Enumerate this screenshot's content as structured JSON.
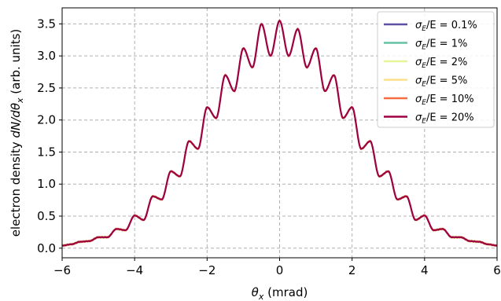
{
  "chart_data": {
    "type": "line",
    "xlabel_main": "θ",
    "xlabel_sub": "x",
    "xlabel_unit": " (mrad)",
    "ylabel_prefix": "electron density ",
    "ylabel_math": "dN/dθ",
    "ylabel_sub": "x",
    "ylabel_unit": " (arb. units)",
    "xlim": [
      -6,
      6
    ],
    "ylim": [
      -0.15,
      3.75
    ],
    "xticks": [
      "−6",
      "−4",
      "−2",
      "0",
      "2",
      "4",
      "6"
    ],
    "yticks": [
      "0.0",
      "0.5",
      "1.0",
      "1.5",
      "2.0",
      "2.5",
      "3.0",
      "3.5"
    ],
    "grid": true,
    "legend_position": "top-right",
    "series": [
      {
        "name": "σE/E = 0.1%",
        "label_main": "σ",
        "label_sub": "E",
        "label_rest": "/E = 0.1%",
        "color": "#5e4fa2"
      },
      {
        "name": "σE/E = 1%",
        "label_main": "σ",
        "label_sub": "E",
        "label_rest": "/E = 1%",
        "color": "#66c2a5"
      },
      {
        "name": "σE/E = 2%",
        "label_main": "σ",
        "label_sub": "E",
        "label_rest": "/E = 2%",
        "color": "#e6f598"
      },
      {
        "name": "σE/E = 5%",
        "label_main": "σ",
        "label_sub": "E",
        "label_rest": "/E = 5%",
        "color": "#fee08b"
      },
      {
        "name": "σE/E = 10%",
        "label_main": "σ",
        "label_sub": "E",
        "label_rest": "/E = 10%",
        "color": "#f46d43"
      },
      {
        "name": "σE/E = 20%",
        "label_main": "σ",
        "label_sub": "E",
        "label_rest": "/E = 20%",
        "color": "#9e0142"
      }
    ],
    "profile": {
      "x": [
        -6.0,
        -5.75,
        -5.5,
        -5.25,
        -5.0,
        -4.75,
        -4.5,
        -4.25,
        -4.0,
        -3.75,
        -3.5,
        -3.25,
        -3.0,
        -2.75,
        -2.5,
        -2.25,
        -2.0,
        -1.75,
        -1.5,
        -1.25,
        -1.0,
        -0.75,
        -0.5,
        -0.25,
        0.0,
        0.25,
        0.5,
        0.75,
        1.0,
        1.25,
        1.5,
        1.75,
        2.0,
        2.25,
        2.5,
        2.75,
        3.0,
        3.25,
        3.5,
        3.75,
        4.0,
        4.25,
        4.5,
        4.75,
        5.0,
        5.25,
        5.5,
        5.75,
        6.0
      ],
      "y": [
        0.04,
        0.06,
        0.1,
        0.11,
        0.17,
        0.17,
        0.3,
        0.28,
        0.51,
        0.44,
        0.81,
        0.76,
        1.2,
        1.12,
        1.67,
        1.55,
        2.2,
        2.03,
        2.7,
        2.45,
        3.12,
        2.82,
        3.5,
        3.0,
        3.55,
        3.0,
        3.42,
        2.82,
        3.12,
        2.45,
        2.7,
        2.03,
        2.2,
        1.55,
        1.67,
        1.12,
        1.2,
        0.76,
        0.81,
        0.44,
        0.51,
        0.28,
        0.3,
        0.17,
        0.17,
        0.11,
        0.1,
        0.06,
        0.04
      ]
    }
  }
}
